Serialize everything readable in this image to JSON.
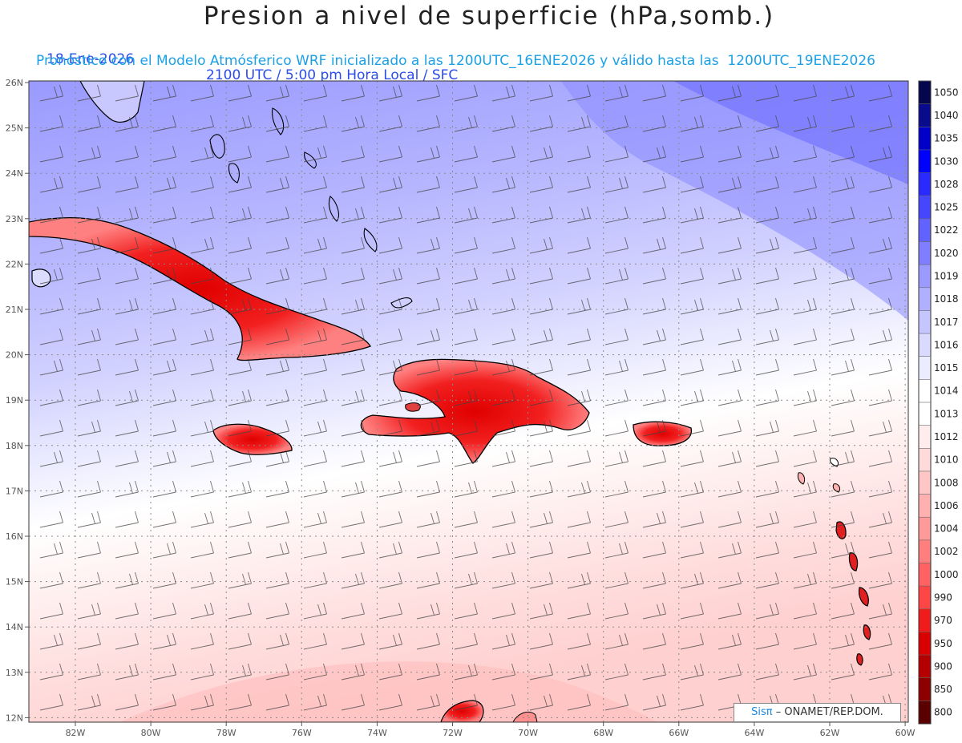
{
  "title": "Presion a nivel de superficie (hPa,somb.)",
  "date": "18-Ene-2026",
  "time": "2100 UTC / 5:00 pm Hora Local / SFC",
  "forecast_note": "Pronóstico con el Modelo Atmósferico WRF inicializado a las 1200UTC_16ENE2026 y válido hasta las  1200UTC_19ENE2026",
  "credit_logo": "Sisπ",
  "credit_org": "– ONAMET/REP.DOM.",
  "lat_labels": [
    "26N",
    "25N",
    "24N",
    "23N",
    "22N",
    "21N",
    "20N",
    "19N",
    "18N",
    "17N",
    "16N",
    "15N",
    "14N",
    "13N",
    "12N"
  ],
  "lon_labels": [
    "82W",
    "80W",
    "78W",
    "76W",
    "74W",
    "72W",
    "70W",
    "68W",
    "66W",
    "64W",
    "62W",
    "60W"
  ],
  "colorbar": {
    "labels": [
      "1050",
      "1040",
      "1035",
      "1030",
      "1028",
      "1025",
      "1022",
      "1020",
      "1019",
      "1018",
      "1017",
      "1016",
      "1015",
      "1014",
      "1013",
      "1012",
      "1010",
      "1008",
      "1006",
      "1004",
      "1002",
      "1000",
      "990",
      "970",
      "950",
      "900",
      "850",
      "800"
    ],
    "colors": [
      "#06064e",
      "#0a0a8c",
      "#0000c8",
      "#0000ff",
      "#2a2aff",
      "#4646ff",
      "#6262ff",
      "#7e7eff",
      "#9a9aff",
      "#b0b0ff",
      "#c6c6ff",
      "#dadaff",
      "#ececff",
      "#ffffff",
      "#ffffff",
      "#ffecec",
      "#ffdada",
      "#ffc6c6",
      "#ffb0b0",
      "#ff9a9a",
      "#ff7e7e",
      "#ff6262",
      "#ff4646",
      "#f01c1c",
      "#d80000",
      "#b40000",
      "#8c0000",
      "#5a0000"
    ]
  }
}
